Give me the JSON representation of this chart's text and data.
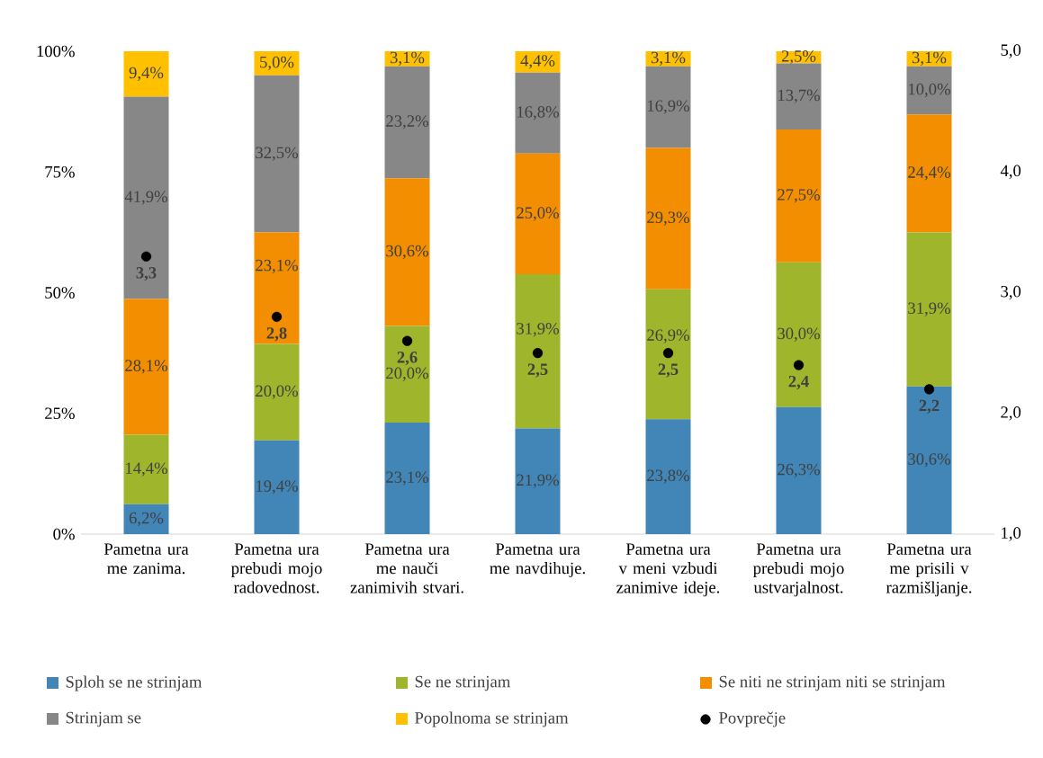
{
  "chart_data": {
    "type": "bar",
    "stacked": true,
    "legend": "bottom",
    "grid": false,
    "categories": [
      "Pametna ura me zanima.",
      "Pametna ura prebudi mojo radovednost.",
      "Pametna ura me nauči zanimivih stvari.",
      "Pametna ura me navdihuje.",
      "Pametna ura v meni vzbudi zanimive ideje.",
      "Pametna ura prebudi mojo ustvarjalnost.",
      "Pametna ura me prisili v razmišljanje."
    ],
    "series": [
      {
        "name": "Sploh se ne strinjam",
        "color": "#4186b6",
        "values": [
          6.2,
          19.4,
          23.1,
          21.9,
          23.8,
          26.3,
          30.6
        ],
        "value_labels": [
          "6,2%",
          "19,4%",
          "23,1%",
          "21,9%",
          "23,8%",
          "26,3%",
          "30,6%"
        ]
      },
      {
        "name": "Se ne strinjam",
        "color": "#9fb52c",
        "values": [
          14.4,
          20.0,
          20.0,
          31.9,
          26.9,
          30.0,
          31.9
        ],
        "value_labels": [
          "14,4%",
          "20,0%",
          "20,0%",
          "31,9%",
          "26,9%",
          "30,0%",
          "31,9%"
        ]
      },
      {
        "name": "Se niti ne strinjam niti se strinjam",
        "color": "#f28e00",
        "values": [
          28.1,
          23.1,
          30.6,
          25.0,
          29.3,
          27.5,
          24.4
        ],
        "value_labels": [
          "28,1%",
          "23,1%",
          "30,6%",
          "25,0%",
          "29,3%",
          "27,5%",
          "24,4%"
        ]
      },
      {
        "name": "Strinjam se",
        "color": "#878787",
        "values": [
          41.9,
          32.5,
          23.2,
          16.8,
          16.9,
          13.7,
          10.0
        ],
        "value_labels": [
          "41,9%",
          "32,5%",
          "23,2%",
          "16,8%",
          "16,9%",
          "13,7%",
          "10,0%"
        ]
      },
      {
        "name": "Popolnoma se strinjam",
        "color": "#ffc000",
        "values": [
          9.4,
          5.0,
          3.1,
          4.4,
          3.1,
          2.5,
          3.1
        ],
        "value_labels": [
          "9,4%",
          "5,0%",
          "3,1%",
          "4,4%",
          "3,1%",
          "2,5%",
          "3,1%"
        ]
      },
      {
        "name": "Povprečje",
        "type": "scatter",
        "axis": "y2",
        "marker": "circle",
        "color": "#000000",
        "values": [
          3.3,
          2.8,
          2.6,
          2.5,
          2.5,
          2.4,
          2.2
        ],
        "value_labels": [
          "3,3",
          "2,8",
          "2,6",
          "2,5",
          "2,5",
          "2,4",
          "2,2"
        ]
      }
    ],
    "ylim": [
      0,
      100
    ],
    "yticks": [
      {
        "value": 0,
        "label": "0%"
      },
      {
        "value": 25,
        "label": "25%"
      },
      {
        "value": 50,
        "label": "50%"
      },
      {
        "value": 75,
        "label": "75%"
      },
      {
        "value": 100,
        "label": "100%"
      }
    ],
    "y2lim": [
      1,
      5
    ],
    "y2ticks": [
      {
        "value": 1,
        "label": "1,0"
      },
      {
        "value": 2,
        "label": "2,0"
      },
      {
        "value": 3,
        "label": "3,0"
      },
      {
        "value": 4,
        "label": "4,0"
      },
      {
        "value": 5,
        "label": "5,0"
      }
    ]
  }
}
